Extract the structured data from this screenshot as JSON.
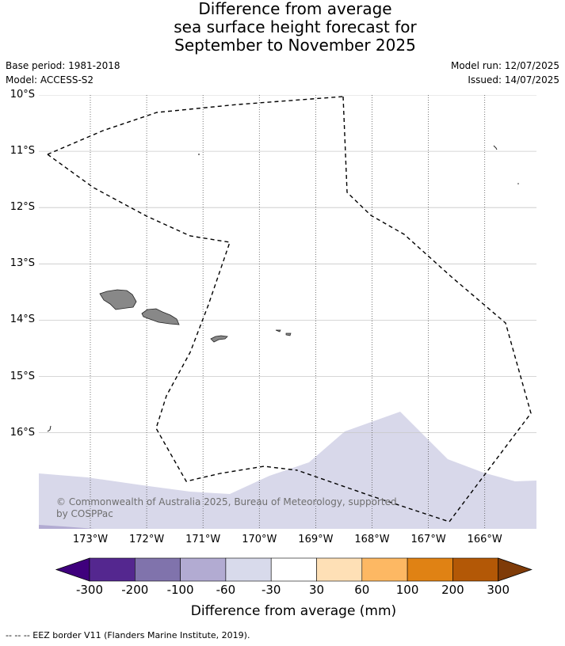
{
  "title_lines": [
    "Difference from average",
    "sea surface height forecast for",
    "September to November 2025"
  ],
  "meta": {
    "base_period": "Base period: 1981-2018",
    "model": "Model: ACCESS-S2",
    "model_run": "Model run: 12/07/2025",
    "issued": "Issued: 14/07/2025"
  },
  "map": {
    "lat_labels": [
      "10°S",
      "11°S",
      "12°S",
      "13°S",
      "14°S",
      "15°S",
      "16°S"
    ],
    "lon_labels": [
      "173°W",
      "172°W",
      "171°W",
      "170°W",
      "169°W",
      "168°W",
      "167°W",
      "166°W"
    ],
    "lat_values": [
      -10,
      -11,
      -12,
      -13,
      -14,
      -15,
      -16
    ],
    "lon_values": [
      -173,
      -172,
      -171,
      -170,
      -169,
      -168,
      -167,
      -166
    ],
    "copyright": "© Commonwealth of Australia 2025, Bureau of Meteorology, supported by COSPPac",
    "land_color": "#888888",
    "anomaly_color": "#d8d8ea",
    "anomaly_dark_color": "#b2abd2",
    "eez_line_style": "dashed",
    "grid": true
  },
  "colorbar": {
    "title": "Difference from average (mm)",
    "tick_labels": [
      "-300",
      "-200",
      "-100",
      "-60",
      "-30",
      "30",
      "60",
      "100",
      "200",
      "300"
    ],
    "colors": [
      "#3f007d",
      "#54278f",
      "#8073ac",
      "#b2abd2",
      "#d8daeb",
      "#ffffff",
      "#fee0b6",
      "#fdb863",
      "#e08214",
      "#b35806",
      "#7f3b08"
    ]
  },
  "footnote": "--  --  -- EEZ border V11 (Flanders Marine Institute, 2019)."
}
